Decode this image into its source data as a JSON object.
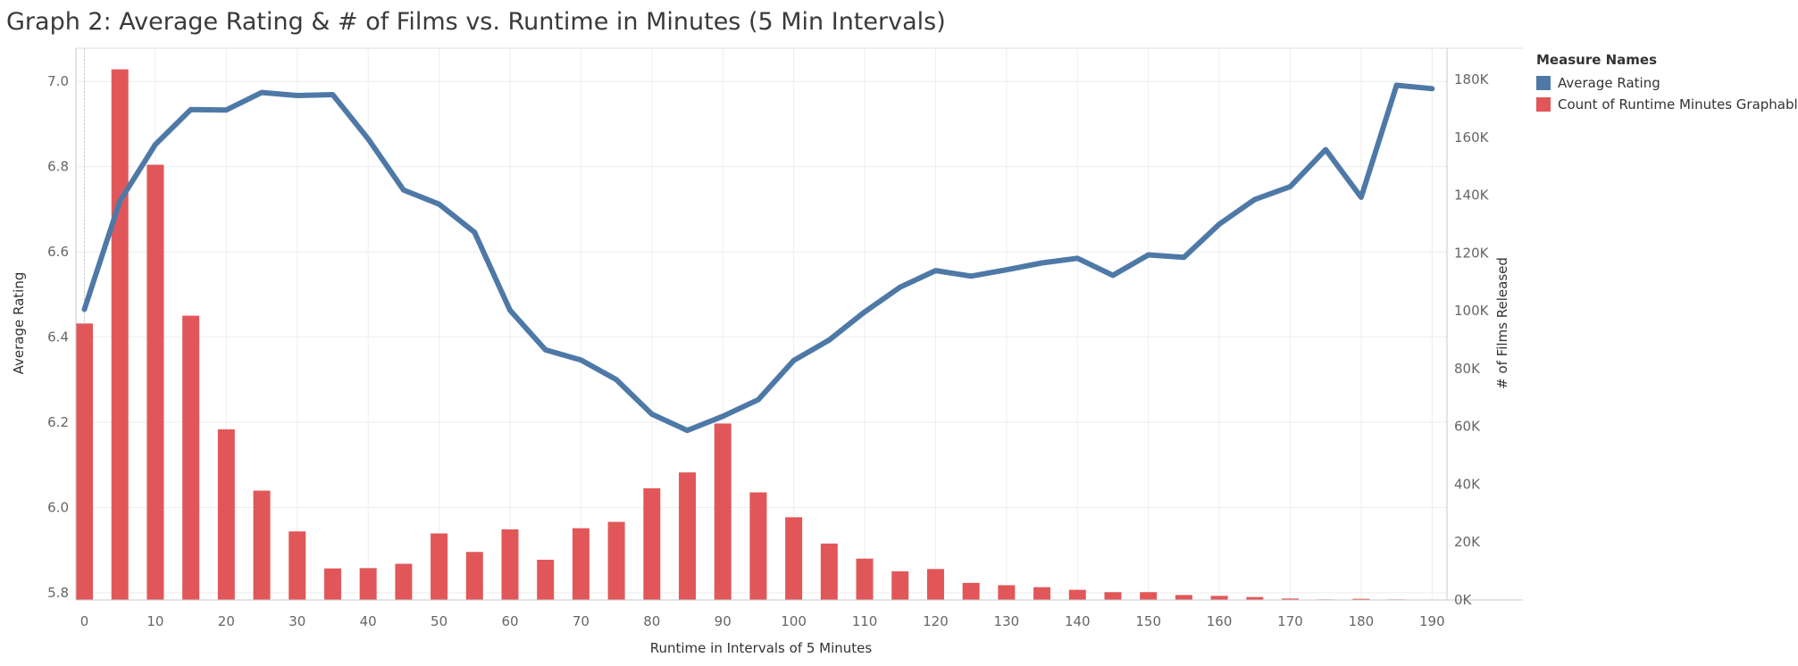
{
  "title": "Graph 2: Average Rating & # of Films vs. Runtime in Minutes (5 Min Intervals)",
  "legend": {
    "title": "Measure Names",
    "items": [
      {
        "label": "Average Rating",
        "color": "#4e79a7"
      },
      {
        "label": "Count of Runtime Minutes Graphable",
        "color": "#e15759"
      }
    ]
  },
  "chart_data": {
    "type": "bar+line",
    "xlabel": "Runtime in Intervals of 5 Minutes",
    "ylabel_left": "Average Rating",
    "ylabel_right": "# of Films Released",
    "x_ticks": [
      "0",
      "10",
      "20",
      "30",
      "40",
      "50",
      "60",
      "70",
      "80",
      "90",
      "100",
      "110",
      "120",
      "130",
      "140",
      "150",
      "160",
      "170",
      "180",
      "190"
    ],
    "y_left_ticks": [
      "5.8",
      "6.0",
      "6.2",
      "6.4",
      "6.6",
      "6.8",
      "7.0"
    ],
    "y_right_ticks": [
      "0K",
      "20K",
      "40K",
      "60K",
      "80K",
      "100K",
      "120K",
      "140K",
      "160K",
      "180K"
    ],
    "y_left_range": [
      5.783,
      7.078
    ],
    "y_right_range": [
      0,
      190800
    ],
    "x": [
      0,
      5,
      10,
      15,
      20,
      25,
      30,
      35,
      40,
      45,
      50,
      55,
      60,
      65,
      70,
      75,
      80,
      85,
      90,
      95,
      100,
      105,
      110,
      115,
      120,
      125,
      130,
      135,
      140,
      145,
      150,
      155,
      160,
      165,
      170,
      175,
      180,
      185,
      190
    ],
    "series": [
      {
        "name": "Count of Runtime Minutes Graphable",
        "axis": "right",
        "mark": "bar",
        "color": "#e15759",
        "values": [
          95600,
          183500,
          150500,
          98300,
          59000,
          37800,
          23700,
          10900,
          11000,
          12500,
          23000,
          16600,
          24400,
          13900,
          24800,
          27000,
          38600,
          44100,
          61000,
          37200,
          28600,
          19500,
          14300,
          9900,
          10700,
          5900,
          5100,
          4400,
          3500,
          2700,
          2700,
          1700,
          1400,
          1000,
          500,
          200,
          400,
          200,
          0
        ]
      },
      {
        "name": "Average Rating",
        "axis": "left",
        "mark": "line",
        "color": "#4e79a7",
        "values": [
          6.465,
          6.719,
          6.852,
          6.934,
          6.933,
          6.974,
          6.967,
          6.969,
          6.865,
          6.745,
          6.712,
          6.646,
          6.463,
          6.37,
          6.346,
          6.3,
          6.219,
          6.181,
          6.214,
          6.253,
          6.345,
          6.393,
          6.459,
          6.517,
          6.556,
          6.543,
          6.558,
          6.574,
          6.585,
          6.545,
          6.593,
          6.587,
          6.665,
          6.723,
          6.753,
          6.84,
          6.728,
          6.991,
          6.983
        ]
      }
    ],
    "grid": true
  }
}
